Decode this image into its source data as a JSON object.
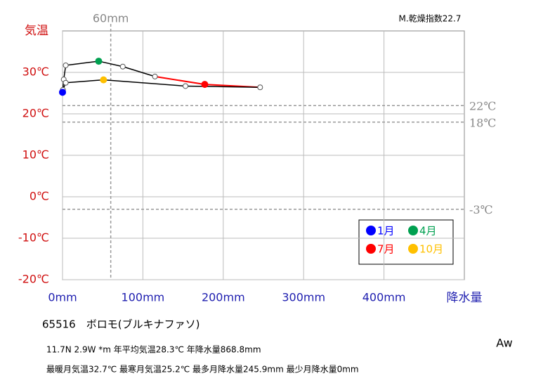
{
  "chart_data": {
    "type": "climograph",
    "annotation": "M.乾燥指数22.7",
    "y_label": "気温",
    "x_label": "降水量",
    "x": [
      0,
      1.5,
      4,
      45,
      75,
      115,
      177,
      245.9,
      153,
      51,
      4,
      0.5
    ],
    "values": [
      25.2,
      28.3,
      31.7,
      32.7,
      31.4,
      29.0,
      27.1,
      26.4,
      26.7,
      28.2,
      27.5,
      25.8
    ],
    "marker_colors": [
      "#0000ff",
      "#ffffff",
      "#ffffff",
      "#00a050",
      "#ffffff",
      "#ffffff",
      "#ff0000",
      "#ffffff",
      "#ffffff",
      "#ffc000",
      "#ffffff",
      "#ffffff"
    ],
    "line_colors": [
      "#000000",
      "#000000",
      "#000000",
      "#000000",
      "#000000",
      "#ff0000",
      "#ff0000",
      "#000000",
      "#000000",
      "#000000",
      "#000000",
      "#000000"
    ],
    "xlim": [
      0,
      500
    ],
    "ylim": [
      -20,
      40
    ],
    "xticks": [
      {
        "value": 0,
        "label": "0mm"
      },
      {
        "value": 100,
        "label": "100mm"
      },
      {
        "value": 200,
        "label": "200mm"
      },
      {
        "value": 300,
        "label": "300mm"
      },
      {
        "value": 400,
        "label": "400mm"
      }
    ],
    "yticks": [
      {
        "value": -20,
        "label": "-20℃"
      },
      {
        "value": -10,
        "label": "-10℃"
      },
      {
        "value": 0,
        "label": "0℃"
      },
      {
        "value": 10,
        "label": "10℃"
      },
      {
        "value": 20,
        "label": "20℃"
      },
      {
        "value": 30,
        "label": "30℃"
      }
    ],
    "grid": true,
    "reference_lines": [
      {
        "value": 22,
        "label": "22℃"
      },
      {
        "value": 18,
        "label": "18℃"
      },
      {
        "value": -3,
        "label": "-3℃"
      }
    ],
    "x_reference": {
      "value": 60,
      "label": "60mm"
    },
    "legend": [
      {
        "label": "1月",
        "color": "#0000ff"
      },
      {
        "label": "4月",
        "color": "#00a050"
      },
      {
        "label": "7月",
        "color": "#ff0000"
      },
      {
        "label": "10月",
        "color": "#ffc000"
      }
    ],
    "station": "65516　ボロモ(ブルキナファソ)",
    "info": [
      "11.7N  2.9W *m  年平均気温28.3℃ 年降水量868.8mm",
      "最暖月気温32.7℃ 最寒月気温25.2℃ 最多月降水量245.9mm 最少月降水量0mm"
    ],
    "climate_class": "Aw"
  }
}
